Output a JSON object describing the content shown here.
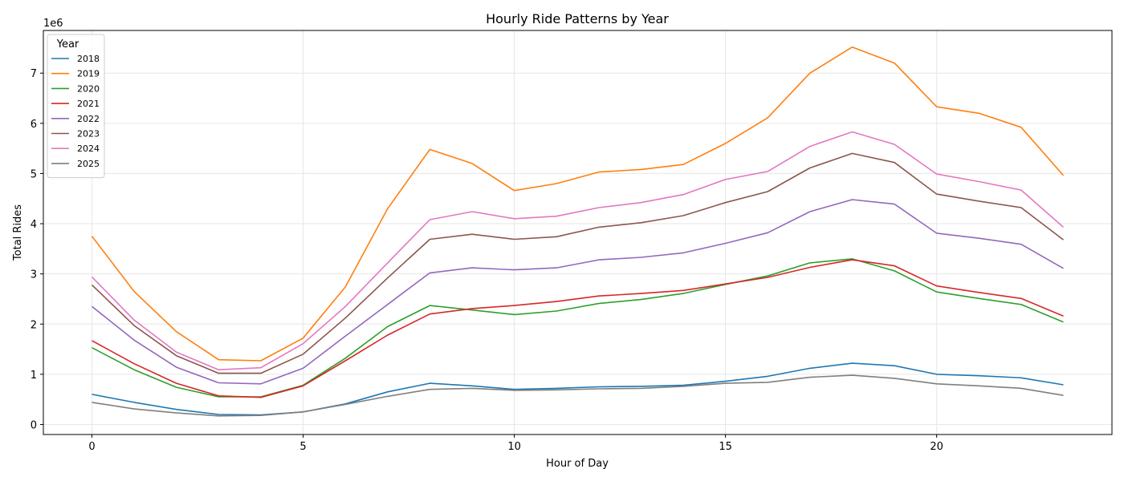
{
  "chart_data": {
    "type": "line",
    "title": "Hourly Ride Patterns by Year",
    "xlabel": "Hour of Day",
    "ylabel": "Total Rides",
    "y_multiplier_label": "1e6",
    "x": [
      0,
      1,
      2,
      3,
      4,
      5,
      6,
      7,
      8,
      9,
      10,
      11,
      12,
      13,
      14,
      15,
      16,
      17,
      18,
      19,
      20,
      21,
      22,
      23
    ],
    "xlim": [
      -1.15,
      24.15
    ],
    "ylim": [
      -200000,
      7850000
    ],
    "x_ticks": [
      0,
      5,
      10,
      15,
      20
    ],
    "y_ticks": [
      0,
      1000000,
      2000000,
      3000000,
      4000000,
      5000000,
      6000000,
      7000000
    ],
    "y_tick_labels": [
      "0",
      "1",
      "2",
      "3",
      "4",
      "5",
      "6",
      "7"
    ],
    "grid": true,
    "legend": {
      "title": "Year",
      "placement": "top-left"
    },
    "series": [
      {
        "name": "2018",
        "color": "#1f77b4",
        "values": [
          600000,
          440000,
          300000,
          200000,
          190000,
          250000,
          410000,
          650000,
          820000,
          770000,
          700000,
          720000,
          750000,
          760000,
          780000,
          860000,
          960000,
          1120000,
          1220000,
          1170000,
          1000000,
          970000,
          930000,
          790000
        ]
      },
      {
        "name": "2019",
        "color": "#ff7f0e",
        "values": [
          3750000,
          2650000,
          1850000,
          1290000,
          1270000,
          1720000,
          2740000,
          4300000,
          5480000,
          5200000,
          4660000,
          4800000,
          5030000,
          5080000,
          5180000,
          5600000,
          6110000,
          7000000,
          7520000,
          7200000,
          6330000,
          6200000,
          5920000,
          4960000
        ]
      },
      {
        "name": "2020",
        "color": "#2ca02c",
        "values": [
          1530000,
          1090000,
          740000,
          550000,
          550000,
          780000,
          1320000,
          1950000,
          2370000,
          2280000,
          2190000,
          2260000,
          2410000,
          2490000,
          2610000,
          2790000,
          2960000,
          3220000,
          3300000,
          3060000,
          2640000,
          2510000,
          2390000,
          2040000
        ]
      },
      {
        "name": "2021",
        "color": "#d62728",
        "values": [
          1670000,
          1210000,
          820000,
          570000,
          540000,
          770000,
          1270000,
          1780000,
          2200000,
          2310000,
          2370000,
          2450000,
          2560000,
          2610000,
          2670000,
          2800000,
          2930000,
          3130000,
          3280000,
          3160000,
          2760000,
          2630000,
          2510000,
          2160000
        ]
      },
      {
        "name": "2022",
        "color": "#9467bd",
        "values": [
          2350000,
          1680000,
          1140000,
          830000,
          810000,
          1120000,
          1760000,
          2390000,
          3020000,
          3120000,
          3080000,
          3120000,
          3280000,
          3330000,
          3420000,
          3610000,
          3820000,
          4240000,
          4480000,
          4390000,
          3810000,
          3710000,
          3590000,
          3110000
        ]
      },
      {
        "name": "2023",
        "color": "#8c564b",
        "values": [
          2780000,
          1970000,
          1370000,
          1020000,
          1020000,
          1400000,
          2120000,
          2920000,
          3690000,
          3790000,
          3690000,
          3740000,
          3930000,
          4020000,
          4160000,
          4420000,
          4640000,
          5110000,
          5400000,
          5220000,
          4590000,
          4450000,
          4320000,
          3680000
        ]
      },
      {
        "name": "2024",
        "color": "#e377c2",
        "values": [
          2940000,
          2080000,
          1440000,
          1090000,
          1130000,
          1610000,
          2350000,
          3220000,
          4080000,
          4240000,
          4100000,
          4150000,
          4320000,
          4420000,
          4580000,
          4880000,
          5040000,
          5540000,
          5830000,
          5580000,
          4990000,
          4840000,
          4670000,
          3930000
        ]
      },
      {
        "name": "2025",
        "color": "#7f7f7f",
        "values": [
          440000,
          310000,
          230000,
          170000,
          180000,
          250000,
          400000,
          560000,
          700000,
          720000,
          680000,
          690000,
          710000,
          720000,
          760000,
          820000,
          840000,
          940000,
          980000,
          920000,
          810000,
          770000,
          720000,
          580000
        ]
      }
    ]
  }
}
